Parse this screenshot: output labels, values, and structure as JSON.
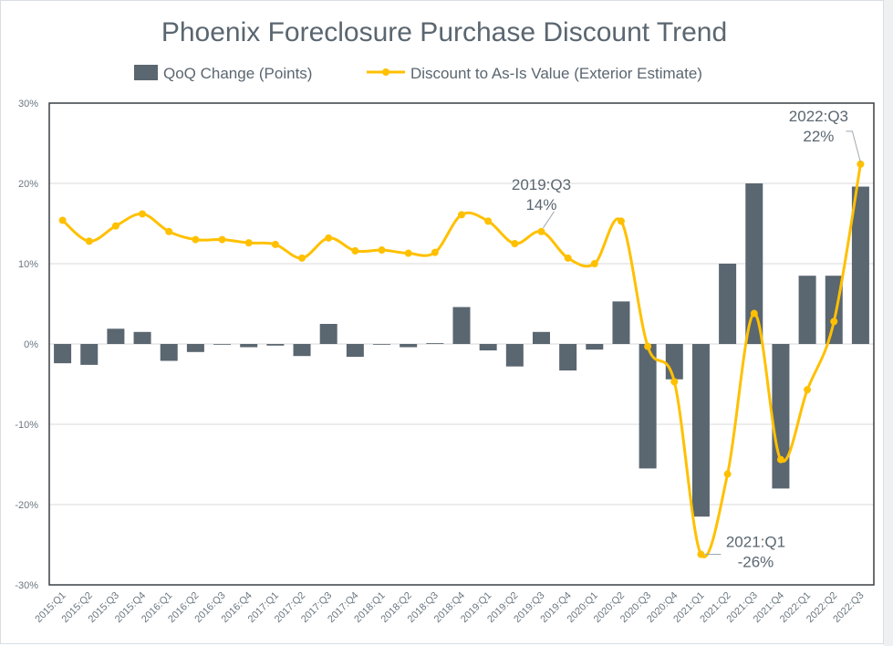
{
  "chart_data": {
    "type": "bar+line",
    "title": "Phoenix Foreclosure Purchase Discount Trend",
    "xlabel": "",
    "ylabel": "",
    "ylim": [
      -30,
      30
    ],
    "yticks": [
      30,
      20,
      10,
      0,
      -10,
      -20,
      -30
    ],
    "ytick_labels": [
      "30%",
      "20%",
      "10%",
      "0%",
      "-10%",
      "-20%",
      "-30%"
    ],
    "grid": true,
    "legend_position": "top",
    "categories": [
      "2015:Q1",
      "2015:Q2",
      "2015:Q3",
      "2015:Q4",
      "2016:Q1",
      "2016:Q2",
      "2016:Q3",
      "2016:Q4",
      "2017:Q1",
      "2017:Q2",
      "2017:Q3",
      "2017:Q4",
      "2018:Q1",
      "2018:Q2",
      "2018:Q3",
      "2018:Q4",
      "2019:Q1",
      "2019:Q2",
      "2019:Q3",
      "2019:Q4",
      "2020:Q1",
      "2020:Q2",
      "2020:Q3",
      "2020:Q4",
      "2021:Q1",
      "2021:Q2",
      "2021:Q3",
      "2021:Q4",
      "2022:Q1",
      "2022:Q2",
      "2022:Q3"
    ],
    "series": [
      {
        "name": "QoQ Change (Points)",
        "type": "bar",
        "color": "#5a6670",
        "values": [
          -2.4,
          -2.6,
          1.9,
          1.5,
          -2.1,
          -1.0,
          0.0,
          -0.4,
          -0.2,
          -1.5,
          2.5,
          -1.6,
          0.0,
          -0.4,
          0.1,
          4.6,
          -0.8,
          -2.8,
          1.5,
          -3.3,
          -0.7,
          5.3,
          -15.5,
          -4.4,
          -21.5,
          10.0,
          20.0,
          -18.0,
          8.5,
          8.5,
          19.6
        ]
      },
      {
        "name": "Discount to As-Is Value (Exterior Estimate)",
        "type": "line",
        "color": "#ffc000",
        "values": [
          15.4,
          12.8,
          14.7,
          16.2,
          14.0,
          13.0,
          13.0,
          12.6,
          12.4,
          10.7,
          13.2,
          11.6,
          11.7,
          11.3,
          11.4,
          16.1,
          15.3,
          12.5,
          14.0,
          10.7,
          10.0,
          15.3,
          -0.3,
          -4.7,
          -26.2,
          -16.2,
          3.8,
          -14.4,
          -5.7,
          2.8,
          22.4
        ]
      }
    ],
    "annotations": [
      {
        "category": "2019:Q3",
        "line1": "2019:Q3",
        "line2": "14%"
      },
      {
        "category": "2021:Q1",
        "line1": "2021:Q1",
        "line2": "-26%"
      },
      {
        "category": "2022:Q3",
        "line1": "2022:Q3",
        "line2": "22%"
      }
    ]
  }
}
